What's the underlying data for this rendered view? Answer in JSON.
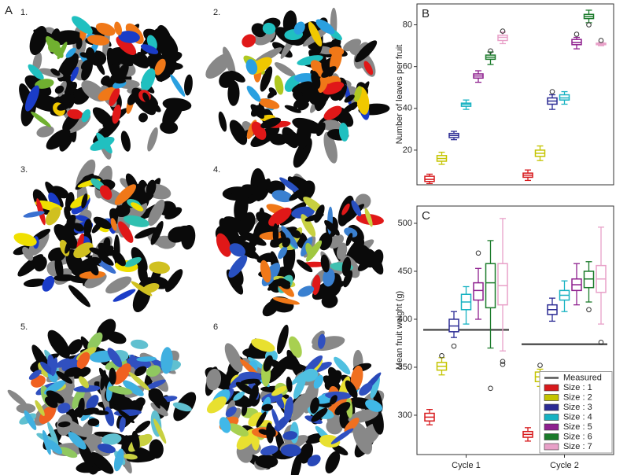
{
  "panel_a": {
    "label": "A",
    "images": [
      "1.",
      "2.",
      "3.",
      "4.",
      "5.",
      "6"
    ]
  },
  "chart_data": [
    {
      "type": "box",
      "panel_label": "B",
      "ylabel": "Number of leaves per fruit",
      "ylim": [
        3.4,
        90
      ],
      "yticks": [
        20,
        40,
        60,
        80
      ],
      "series": [
        {
          "color": "#d7191c",
          "boxes": [
            {
              "low": 4,
              "q1": 5,
              "median": 6,
              "q3": 7.5,
              "high": 8.5,
              "outliers": []
            },
            {
              "low": 5.5,
              "q1": 7,
              "median": 8,
              "q3": 9,
              "high": 10.5,
              "outliers": []
            }
          ]
        },
        {
          "color": "#c4c400",
          "boxes": [
            {
              "low": 13.2,
              "q1": 14.7,
              "median": 16,
              "q3": 17.4,
              "high": 19,
              "outliers": []
            },
            {
              "low": 15,
              "q1": 17,
              "median": 18.5,
              "q3": 20,
              "high": 22,
              "outliers": []
            }
          ]
        },
        {
          "color": "#2b2b94",
          "boxes": [
            {
              "low": 25,
              "q1": 26,
              "median": 27,
              "q3": 28,
              "high": 29,
              "outliers": []
            },
            {
              "low": 39.5,
              "q1": 42,
              "median": 43.5,
              "q3": 45,
              "high": 46.5,
              "outliers": [
                48
              ]
            }
          ]
        },
        {
          "color": "#17b2c2",
          "boxes": [
            {
              "low": 39.5,
              "q1": 41,
              "median": 42,
              "q3": 42.5,
              "high": 44,
              "outliers": []
            },
            {
              "low": 42,
              "q1": 44,
              "median": 45,
              "q3": 46.5,
              "high": 48,
              "outliers": []
            }
          ]
        },
        {
          "color": "#8e1f8e",
          "boxes": [
            {
              "low": 52.5,
              "q1": 54.5,
              "median": 55.5,
              "q3": 56.5,
              "high": 58,
              "outliers": []
            },
            {
              "low": 68.5,
              "q1": 70.5,
              "median": 71.5,
              "q3": 73,
              "high": 74,
              "outliers": [
                75.5
              ]
            }
          ]
        },
        {
          "color": "#1a7a2a",
          "boxes": [
            {
              "low": 61,
              "q1": 63.5,
              "median": 64.5,
              "q3": 65.5,
              "high": 67,
              "outliers": [
                67.5
              ]
            },
            {
              "low": 81,
              "q1": 83,
              "median": 84,
              "q3": 85,
              "high": 87,
              "outliers": [
                80
              ]
            }
          ]
        },
        {
          "color": "#e8a0c8",
          "boxes": [
            {
              "low": 71,
              "q1": 72.5,
              "median": 74,
              "q3": 75,
              "high": 76.5,
              "outliers": [
                77
              ]
            },
            {
              "low": 70,
              "q1": 70.5,
              "median": 71,
              "q3": 71.2,
              "high": 71.5,
              "outliers": [
                72.5
              ]
            }
          ]
        }
      ]
    },
    {
      "type": "box",
      "panel_label": "C",
      "ylabel": "Mean fruit weight (g)",
      "categories": [
        "Cycle 1",
        "Cycle 2"
      ],
      "ylim": [
        259,
        518
      ],
      "yticks": [
        300,
        350,
        400,
        450,
        500
      ],
      "legend": "lower right",
      "reference": {
        "name": "Measured",
        "color": "#555555",
        "values": [
          389,
          374
        ]
      },
      "series": [
        {
          "name": "Size : 1",
          "color": "#d7191c",
          "boxes": [
            {
              "low": 290,
              "q1": 294,
              "median": 298,
              "q3": 302,
              "high": 306,
              "outliers": []
            },
            {
              "low": 273,
              "q1": 277,
              "median": 280,
              "q3": 283,
              "high": 287,
              "outliers": []
            }
          ]
        },
        {
          "name": "Size : 2",
          "color": "#c4c400",
          "boxes": [
            {
              "low": 342,
              "q1": 347,
              "median": 351,
              "q3": 355,
              "high": 360,
              "outliers": [
                362
              ]
            },
            {
              "low": 330,
              "q1": 335,
              "median": 340,
              "q3": 345,
              "high": 348,
              "outliers": [
                352
              ]
            }
          ]
        },
        {
          "name": "Size : 3",
          "color": "#2b2b94",
          "boxes": [
            {
              "low": 381,
              "q1": 387,
              "median": 393,
              "q3": 400,
              "high": 408,
              "outliers": [
                372
              ]
            },
            {
              "low": 398,
              "q1": 405,
              "median": 410,
              "q3": 415,
              "high": 422,
              "outliers": []
            }
          ]
        },
        {
          "name": "Size : 4",
          "color": "#17b2c2",
          "boxes": [
            {
              "low": 395,
              "q1": 410,
              "median": 418,
              "q3": 426,
              "high": 434,
              "outliers": []
            },
            {
              "low": 408,
              "q1": 420,
              "median": 425,
              "q3": 430,
              "high": 440,
              "outliers": []
            }
          ]
        },
        {
          "name": "Size : 5",
          "color": "#8e1f8e",
          "boxes": [
            {
              "low": 400,
              "q1": 420,
              "median": 430,
              "q3": 438,
              "high": 453,
              "outliers": [
                469
              ]
            },
            {
              "low": 415,
              "q1": 430,
              "median": 436,
              "q3": 442,
              "high": 458,
              "outliers": []
            }
          ]
        },
        {
          "name": "Size : 6",
          "color": "#1a7a2a",
          "boxes": [
            {
              "low": 370,
              "q1": 412,
              "median": 438,
              "q3": 458,
              "high": 482,
              "outliers": [
                328
              ]
            },
            {
              "low": 418,
              "q1": 433,
              "median": 442,
              "q3": 450,
              "high": 460,
              "outliers": [
                410
              ]
            }
          ]
        },
        {
          "name": "Size : 7",
          "color": "#e8a0c8",
          "boxes": [
            {
              "low": 367,
              "q1": 415,
              "median": 435,
              "q3": 458,
              "high": 505,
              "outliers": [
                356,
                353
              ]
            },
            {
              "low": 395,
              "q1": 428,
              "median": 442,
              "q3": 456,
              "high": 496,
              "outliers": [
                376
              ]
            }
          ]
        }
      ]
    }
  ]
}
